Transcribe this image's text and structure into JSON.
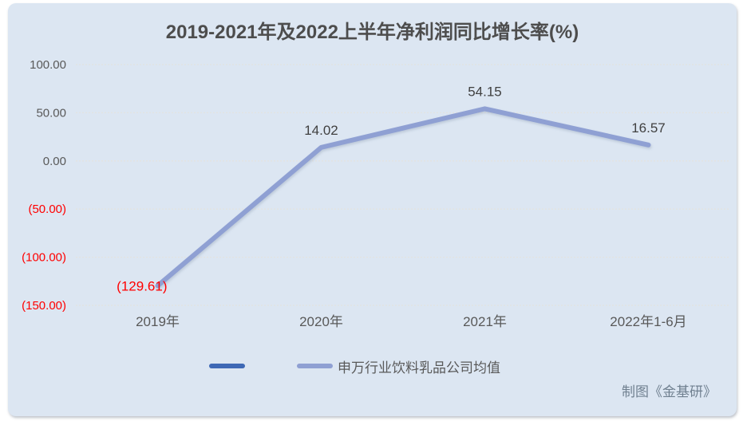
{
  "chart_data": {
    "type": "line",
    "title": "2019-2021年及2022上半年净利润同比增长率(%)",
    "categories": [
      "2019年",
      "2020年",
      "2021年",
      "2022年1-6月"
    ],
    "series": [
      {
        "name": "",
        "color": "#3E68B5",
        "values": []
      },
      {
        "name": "申万行业饮料乳品公司均值",
        "color": "#8FA0D3",
        "values": [
          -129.61,
          14.02,
          54.15,
          16.57
        ]
      }
    ],
    "data_labels": [
      "(129.61)",
      "14.02",
      "54.15",
      "16.57"
    ],
    "ylim": [
      -150,
      100
    ],
    "ytick_step": 50,
    "ytick_labels": [
      "100.00",
      "50.00",
      "0.00",
      "(50.00)",
      "(100.00)",
      "(150.00)"
    ],
    "grid": true,
    "legend_position": "bottom",
    "colors": {
      "background": "#DCE6F2",
      "title_text": "#4D4D4D",
      "axis_text": "#595959",
      "negative_text": "#FF0000",
      "data_label_text": "#404040",
      "gridline": "#E3E3E0"
    }
  },
  "watermark": "制图《金基研》"
}
